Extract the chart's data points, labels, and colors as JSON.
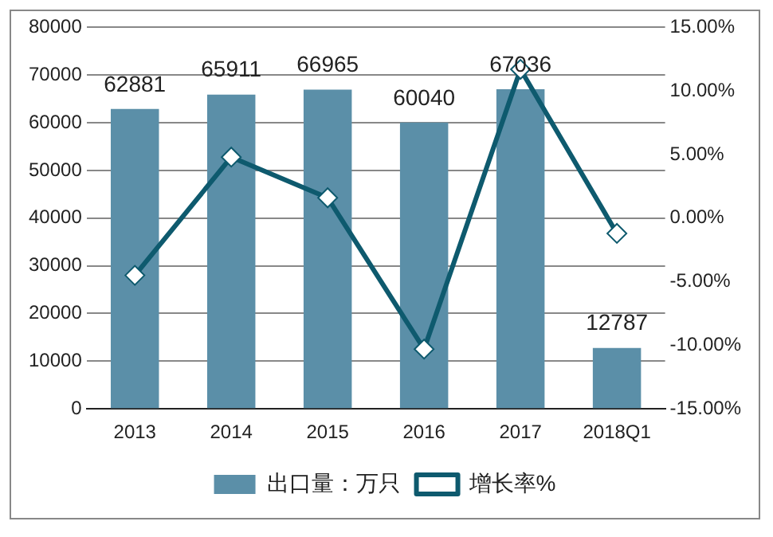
{
  "chart_data": {
    "type": "bar",
    "categories": [
      "2013",
      "2014",
      "2015",
      "2016",
      "2017",
      "2018Q1"
    ],
    "series": [
      {
        "name": "出口量：万只",
        "color": "#5b8fa8",
        "values": [
          62881,
          65911,
          66965,
          60040,
          67036,
          12787
        ],
        "value_labels": [
          "62881",
          "65911",
          "66965",
          "60040",
          "67036",
          "12787"
        ]
      },
      {
        "name": "增长率%",
        "type": "line",
        "axis": "y2",
        "color": "#0e5a6e",
        "marker": "diamond",
        "values": [
          -4.5,
          4.8,
          1.6,
          -10.3,
          11.7,
          -1.2
        ]
      }
    ],
    "ylim": [
      0,
      80000
    ],
    "yticks": [
      0,
      10000,
      20000,
      30000,
      40000,
      50000,
      60000,
      70000,
      80000
    ],
    "y2lim": [
      -15,
      15
    ],
    "y2ticks": [
      {
        "value": -15,
        "label": "-15.00%"
      },
      {
        "value": -10,
        "label": "-10.00%"
      },
      {
        "value": -5,
        "label": "-5.00%"
      },
      {
        "value": 0,
        "label": "0.00%"
      },
      {
        "value": 5,
        "label": "5.00%"
      },
      {
        "value": 10,
        "label": "10.00%"
      },
      {
        "value": 15,
        "label": "15.00%"
      }
    ],
    "grid": "y",
    "legend": "bottom"
  }
}
